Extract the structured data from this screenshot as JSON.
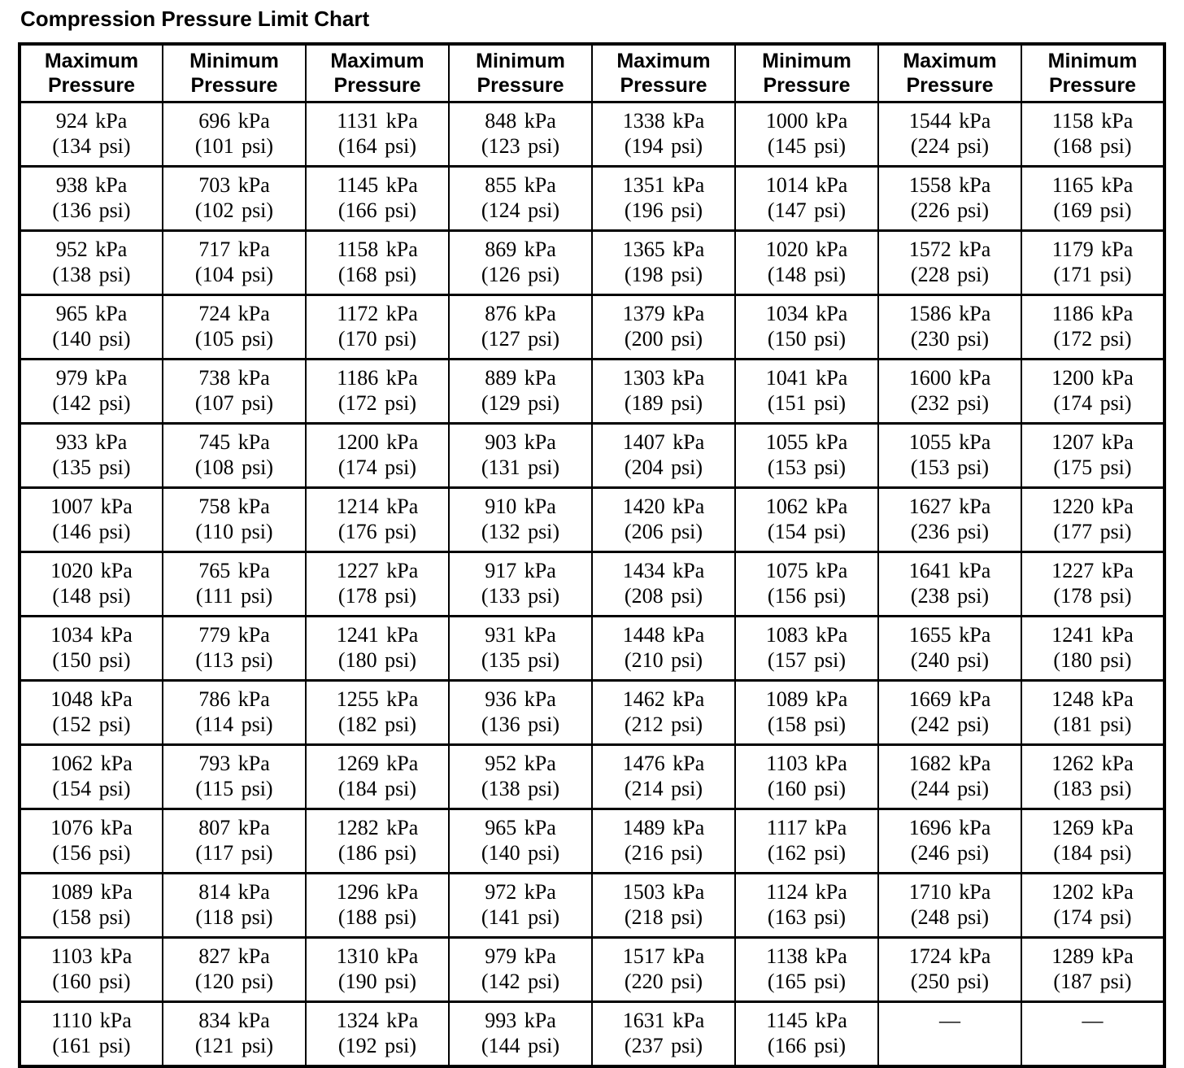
{
  "title": "Compression Pressure Limit Chart",
  "table": {
    "headers": [
      "Maximum Pressure",
      "Minimum Pressure",
      "Maximum Pressure",
      "Minimum Pressure",
      "Maximum Pressure",
      "Minimum Pressure",
      "Maximum Pressure",
      "Minimum Pressure"
    ],
    "rows": [
      [
        {
          "kpa": "924 kPa",
          "psi": "(134 psi)"
        },
        {
          "kpa": "696 kPa",
          "psi": "(101 psi)"
        },
        {
          "kpa": "1131 kPa",
          "psi": "(164 psi)"
        },
        {
          "kpa": "848 kPa",
          "psi": "(123 psi)"
        },
        {
          "kpa": "1338 kPa",
          "psi": "(194 psi)"
        },
        {
          "kpa": "1000 kPa",
          "psi": "(145 psi)"
        },
        {
          "kpa": "1544 kPa",
          "psi": "(224 psi)"
        },
        {
          "kpa": "1158 kPa",
          "psi": "(168 psi)"
        }
      ],
      [
        {
          "kpa": "938 kPa",
          "psi": "(136 psi)"
        },
        {
          "kpa": "703 kPa",
          "psi": "(102 psi)"
        },
        {
          "kpa": "1145 kPa",
          "psi": "(166 psi)"
        },
        {
          "kpa": "855 kPa",
          "psi": "(124 psi)"
        },
        {
          "kpa": "1351 kPa",
          "psi": "(196 psi)"
        },
        {
          "kpa": "1014 kPa",
          "psi": "(147 psi)"
        },
        {
          "kpa": "1558 kPa",
          "psi": "(226 psi)"
        },
        {
          "kpa": "1165 kPa",
          "psi": "(169 psi)"
        }
      ],
      [
        {
          "kpa": "952 kPa",
          "psi": "(138 psi)"
        },
        {
          "kpa": "717 kPa",
          "psi": "(104 psi)"
        },
        {
          "kpa": "1158 kPa",
          "psi": "(168 psi)"
        },
        {
          "kpa": "869 kPa",
          "psi": "(126 psi)"
        },
        {
          "kpa": "1365 kPa",
          "psi": "(198 psi)"
        },
        {
          "kpa": "1020 kPa",
          "psi": "(148 psi)"
        },
        {
          "kpa": "1572 kPa",
          "psi": "(228 psi)"
        },
        {
          "kpa": "1179 kPa",
          "psi": "(171 psi)"
        }
      ],
      [
        {
          "kpa": "965 kPa",
          "psi": "(140 psi)"
        },
        {
          "kpa": "724 kPa",
          "psi": "(105 psi)"
        },
        {
          "kpa": "1172 kPa",
          "psi": "(170 psi)"
        },
        {
          "kpa": "876 kPa",
          "psi": "(127 psi)"
        },
        {
          "kpa": "1379 kPa",
          "psi": "(200 psi)"
        },
        {
          "kpa": "1034 kPa",
          "psi": "(150 psi)"
        },
        {
          "kpa": "1586 kPa",
          "psi": "(230 psi)"
        },
        {
          "kpa": "1186 kPa",
          "psi": "(172 psi)"
        }
      ],
      [
        {
          "kpa": "979 kPa",
          "psi": "(142 psi)"
        },
        {
          "kpa": "738 kPa",
          "psi": "(107 psi)"
        },
        {
          "kpa": "1186 kPa",
          "psi": "(172 psi)"
        },
        {
          "kpa": "889 kPa",
          "psi": "(129 psi)"
        },
        {
          "kpa": "1303 kPa",
          "psi": "(189 psi)"
        },
        {
          "kpa": "1041 kPa",
          "psi": "(151 psi)"
        },
        {
          "kpa": "1600 kPa",
          "psi": "(232 psi)"
        },
        {
          "kpa": "1200 kPa",
          "psi": "(174 psi)"
        }
      ],
      [
        {
          "kpa": "933 kPa",
          "psi": "(135 psi)"
        },
        {
          "kpa": "745 kPa",
          "psi": "(108 psi)"
        },
        {
          "kpa": "1200 kPa",
          "psi": "(174 psi)"
        },
        {
          "kpa": "903 kPa",
          "psi": "(131 psi)"
        },
        {
          "kpa": "1407 kPa",
          "psi": "(204 psi)"
        },
        {
          "kpa": "1055 kPa",
          "psi": "(153 psi)"
        },
        {
          "kpa": "1055 kPa",
          "psi": "(153 psi)"
        },
        {
          "kpa": "1207 kPa",
          "psi": "(175 psi)"
        }
      ],
      [
        {
          "kpa": "1007 kPa",
          "psi": "(146 psi)"
        },
        {
          "kpa": "758 kPa",
          "psi": "(110 psi)"
        },
        {
          "kpa": "1214 kPa",
          "psi": "(176 psi)"
        },
        {
          "kpa": "910 kPa",
          "psi": "(132 psi)"
        },
        {
          "kpa": "1420 kPa",
          "psi": "(206 psi)"
        },
        {
          "kpa": "1062 kPa",
          "psi": "(154 psi)"
        },
        {
          "kpa": "1627 kPa",
          "psi": "(236 psi)"
        },
        {
          "kpa": "1220 kPa",
          "psi": "(177 psi)"
        }
      ],
      [
        {
          "kpa": "1020 kPa",
          "psi": "(148 psi)"
        },
        {
          "kpa": "765 kPa",
          "psi": "(111 psi)"
        },
        {
          "kpa": "1227 kPa",
          "psi": "(178 psi)"
        },
        {
          "kpa": "917 kPa",
          "psi": "(133 psi)"
        },
        {
          "kpa": "1434 kPa",
          "psi": "(208 psi)"
        },
        {
          "kpa": "1075 kPa",
          "psi": "(156 psi)"
        },
        {
          "kpa": "1641 kPa",
          "psi": "(238 psi)"
        },
        {
          "kpa": "1227 kPa",
          "psi": "(178 psi)"
        }
      ],
      [
        {
          "kpa": "1034 kPa",
          "psi": "(150 psi)"
        },
        {
          "kpa": "779 kPa",
          "psi": "(113 psi)"
        },
        {
          "kpa": "1241 kPa",
          "psi": "(180 psi)"
        },
        {
          "kpa": "931 kPa",
          "psi": "(135 psi)"
        },
        {
          "kpa": "1448 kPa",
          "psi": "(210 psi)"
        },
        {
          "kpa": "1083 kPa",
          "psi": "(157 psi)"
        },
        {
          "kpa": "1655 kPa",
          "psi": "(240 psi)"
        },
        {
          "kpa": "1241 kPa",
          "psi": "(180 psi)"
        }
      ],
      [
        {
          "kpa": "1048 kPa",
          "psi": "(152 psi)"
        },
        {
          "kpa": "786 kPa",
          "psi": "(114 psi)"
        },
        {
          "kpa": "1255 kPa",
          "psi": "(182 psi)"
        },
        {
          "kpa": "936 kPa",
          "psi": "(136 psi)"
        },
        {
          "kpa": "1462 kPa",
          "psi": "(212 psi)"
        },
        {
          "kpa": "1089 kPa",
          "psi": "(158 psi)"
        },
        {
          "kpa": "1669 kPa",
          "psi": "(242 psi)"
        },
        {
          "kpa": "1248 kPa",
          "psi": "(181 psi)"
        }
      ],
      [
        {
          "kpa": "1062 kPa",
          "psi": "(154 psi)"
        },
        {
          "kpa": "793 kPa",
          "psi": "(115 psi)"
        },
        {
          "kpa": "1269 kPa",
          "psi": "(184 psi)"
        },
        {
          "kpa": "952 kPa",
          "psi": "(138 psi)"
        },
        {
          "kpa": "1476 kPa",
          "psi": "(214 psi)"
        },
        {
          "kpa": "1103 kPa",
          "psi": "(160 psi)"
        },
        {
          "kpa": "1682 kPa",
          "psi": "(244 psi)"
        },
        {
          "kpa": "1262 kPa",
          "psi": "(183 psi)"
        }
      ],
      [
        {
          "kpa": "1076 kPa",
          "psi": "(156 psi)"
        },
        {
          "kpa": "807 kPa",
          "psi": "(117 psi)"
        },
        {
          "kpa": "1282 kPa",
          "psi": "(186 psi)"
        },
        {
          "kpa": "965 kPa",
          "psi": "(140 psi)"
        },
        {
          "kpa": "1489 kPa",
          "psi": "(216 psi)"
        },
        {
          "kpa": "1117 kPa",
          "psi": "(162 psi)"
        },
        {
          "kpa": "1696 kPa",
          "psi": "(246 psi)"
        },
        {
          "kpa": "1269 kPa",
          "psi": "(184 psi)"
        }
      ],
      [
        {
          "kpa": "1089 kPa",
          "psi": "(158 psi)"
        },
        {
          "kpa": "814 kPa",
          "psi": "(118 psi)"
        },
        {
          "kpa": "1296 kPa",
          "psi": "(188 psi)"
        },
        {
          "kpa": "972 kPa",
          "psi": "(141 psi)"
        },
        {
          "kpa": "1503 kPa",
          "psi": "(218 psi)"
        },
        {
          "kpa": "1124 kPa",
          "psi": "(163 psi)"
        },
        {
          "kpa": "1710 kPa",
          "psi": "(248 psi)"
        },
        {
          "kpa": "1202 kPa",
          "psi": "(174 psi)"
        }
      ],
      [
        {
          "kpa": "1103 kPa",
          "psi": "(160 psi)"
        },
        {
          "kpa": "827 kPa",
          "psi": "(120 psi)"
        },
        {
          "kpa": "1310 kPa",
          "psi": "(190 psi)"
        },
        {
          "kpa": "979 kPa",
          "psi": "(142 psi)"
        },
        {
          "kpa": "1517 kPa",
          "psi": "(220 psi)"
        },
        {
          "kpa": "1138 kPa",
          "psi": "(165 psi)"
        },
        {
          "kpa": "1724 kPa",
          "psi": "(250 psi)"
        },
        {
          "kpa": "1289 kPa",
          "psi": "(187 psi)"
        }
      ],
      [
        {
          "kpa": "1110 kPa",
          "psi": "(161 psi)"
        },
        {
          "kpa": "834 kPa",
          "psi": "(121 psi)"
        },
        {
          "kpa": "1324 kPa",
          "psi": "(192 psi)"
        },
        {
          "kpa": "993 kPa",
          "psi": "(144 psi)"
        },
        {
          "kpa": "1631 kPa",
          "psi": "(237 psi)"
        },
        {
          "kpa": "1145 kPa",
          "psi": "(166 psi)"
        },
        {
          "kpa": "—",
          "psi": ""
        },
        {
          "kpa": "—",
          "psi": ""
        }
      ]
    ]
  }
}
